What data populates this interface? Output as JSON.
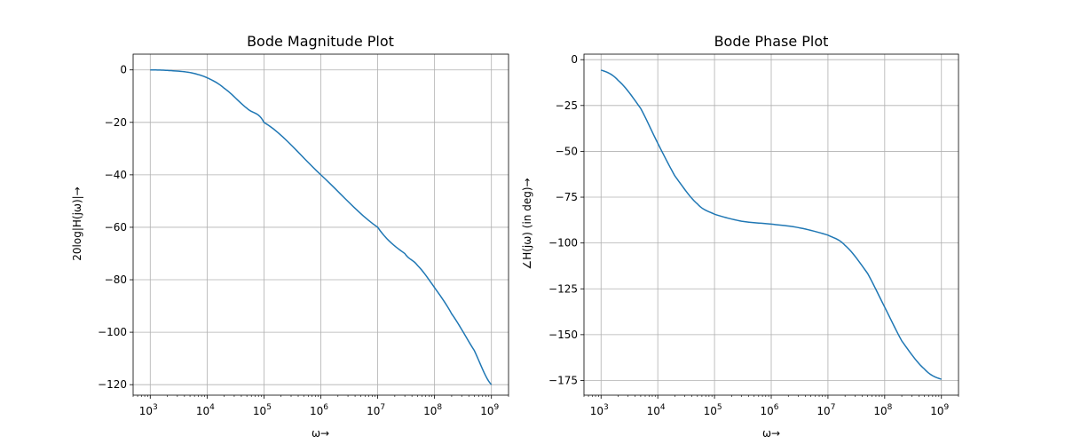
{
  "chart_data": [
    {
      "type": "line",
      "title": "Bode Magnitude Plot",
      "xlabel": "ω→",
      "ylabel": "20log|H(jω)|→",
      "xscale": "log",
      "xlim": [
        500,
        2000000000
      ],
      "ylim": [
        -124,
        6
      ],
      "xtick_exponents": [
        3,
        4,
        5,
        6,
        7,
        8,
        9
      ],
      "yticks": [
        0,
        -20,
        -40,
        -60,
        -80,
        -100,
        -120
      ],
      "ytick_labels": [
        "0",
        "−20",
        "−40",
        "−60",
        "−80",
        "−100",
        "−120"
      ],
      "grid": true,
      "color": "#1f77b4",
      "series": [
        {
          "x": [
            1000,
            2000,
            5000,
            10000,
            20000,
            50000,
            100000,
            1000000,
            10000000,
            30000000,
            50000000,
            100000000,
            200000000,
            500000000,
            1000000000
          ],
          "y": [
            0,
            -0.2,
            -1.0,
            -3.0,
            -7.0,
            -14.6,
            -20.0,
            -40.0,
            -60.0,
            -70.0,
            -74.5,
            -83.0,
            -93.0,
            -107.0,
            -120.0
          ]
        }
      ]
    },
    {
      "type": "line",
      "title": "Bode Phase Plot",
      "xlabel": "ω→",
      "ylabel": "∠H(jω) (in deg)→",
      "xscale": "log",
      "xlim": [
        500,
        2000000000
      ],
      "ylim": [
        -183,
        3
      ],
      "xtick_exponents": [
        3,
        4,
        5,
        6,
        7,
        8,
        9
      ],
      "yticks": [
        0,
        -25,
        -50,
        -75,
        -100,
        -125,
        -150,
        -175
      ],
      "ytick_labels": [
        "0",
        "−25",
        "−50",
        "−75",
        "−100",
        "−125",
        "−150",
        "−175"
      ],
      "grid": true,
      "color": "#1f77b4",
      "series": [
        {
          "x": [
            1000,
            2000,
            5000,
            10000,
            20000,
            50000,
            100000,
            300000,
            1000000,
            3000000,
            10000000,
            20000000,
            50000000,
            100000000,
            200000000,
            500000000,
            1000000000
          ],
          "y": [
            -5.7,
            -11.3,
            -26.6,
            -45.6,
            -63.4,
            -78.7,
            -84.3,
            -88.1,
            -89.7,
            -91.6,
            -95.7,
            -101.3,
            -116.6,
            -135.0,
            -153.4,
            -168.7,
            -174.3
          ]
        }
      ]
    }
  ]
}
